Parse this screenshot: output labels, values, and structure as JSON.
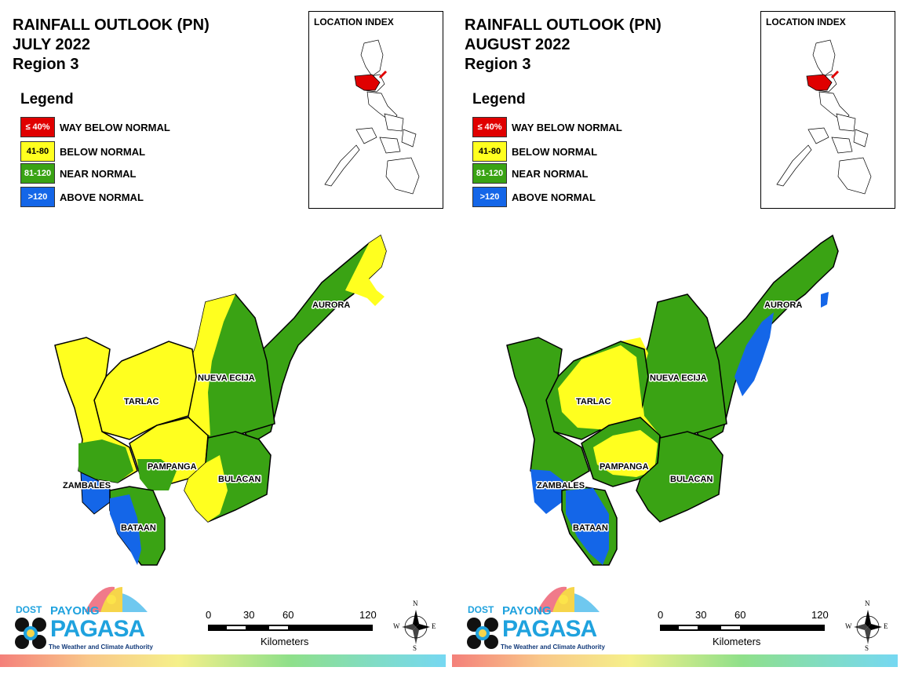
{
  "colors": {
    "way_below": "#e00000",
    "below": "#ffff1f",
    "near": "#3aa314",
    "above": "#1466e8"
  },
  "legend": {
    "title": "Legend",
    "items": [
      {
        "range": "≤ 40%",
        "label": "WAY BELOW NORMAL"
      },
      {
        "range": "41-80",
        "label": "BELOW NORMAL"
      },
      {
        "range": "81-120",
        "label": "NEAR NORMAL"
      },
      {
        "range": ">120",
        "label": "ABOVE NORMAL"
      }
    ]
  },
  "location_index": {
    "title": "LOCATION INDEX"
  },
  "provinces": {
    "aurora": "AURORA",
    "nueva_ecija": "NUEVA ECIJA",
    "tarlac": "TARLAC",
    "pampanga": "PAMPANGA",
    "bulacan": "BULACAN",
    "zambales": "ZAMBALES",
    "bataan": "BATAAN"
  },
  "scale": {
    "ticks": [
      "0",
      "30",
      "60",
      "120"
    ],
    "unit": "Kilometers"
  },
  "compass": {
    "n": "N",
    "s": "S",
    "e": "E",
    "w": "W"
  },
  "logo": {
    "dost": "DOST",
    "payong": "PAYONG",
    "pagasa": "PAGASA",
    "tagline": "The Weather and Climate Authority"
  },
  "panels": [
    {
      "title": "RAINFALL OUTLOOK (PN)",
      "month": "JULY 2022",
      "region": "Region 3"
    },
    {
      "title": "RAINFALL OUTLOOK (PN)",
      "month": "AUGUST 2022",
      "region": "Region 3"
    }
  ]
}
